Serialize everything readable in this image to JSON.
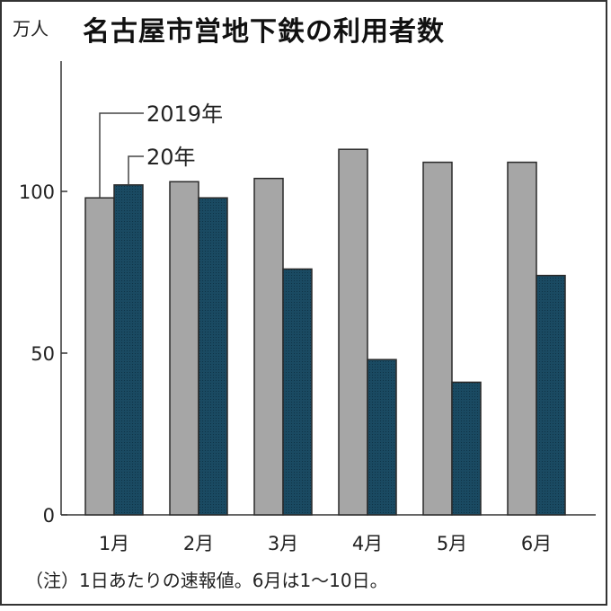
{
  "header": {
    "unit": "万人",
    "title": "名古屋市営地下鉄の利用者数"
  },
  "note": "（注）1日あたりの速報値。6月は1～10日。",
  "colors": {
    "series_2019": "#a6a6a6",
    "series_2020": "#1a4a62",
    "axis": "#333333"
  },
  "chart_data": {
    "type": "bar",
    "title": "名古屋市営地下鉄の利用者数",
    "ylabel": "万人",
    "xlabel": "",
    "categories": [
      "1月",
      "2月",
      "3月",
      "4月",
      "5月",
      "6月"
    ],
    "series": [
      {
        "name": "2019年",
        "values": [
          98,
          103,
          104,
          113,
          109,
          109
        ]
      },
      {
        "name": "20年",
        "values": [
          102,
          98,
          76,
          48,
          41,
          74
        ]
      }
    ],
    "yticks": [
      0,
      50,
      100
    ],
    "ylim": [
      0,
      140
    ],
    "grid": false,
    "legend": "callout lines at 1月 bars",
    "annotation": "（注）1日あたりの速報値。6月は1～10日。"
  }
}
